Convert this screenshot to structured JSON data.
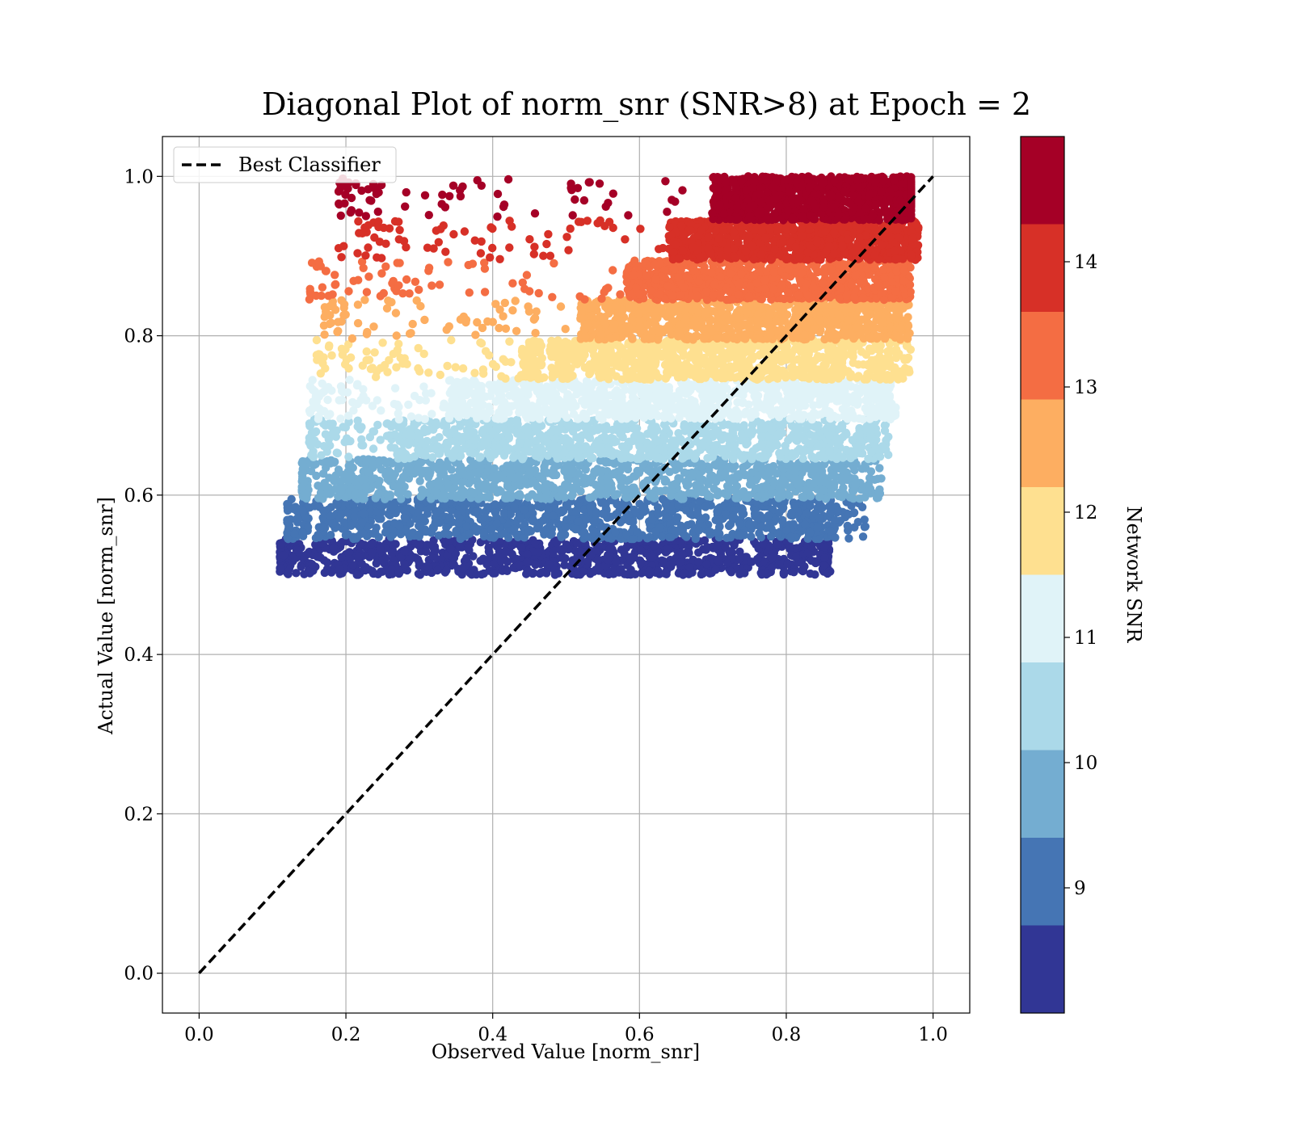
{
  "chart_data": {
    "type": "scatter",
    "title": "Diagonal Plot of norm_snr (SNR>8) at Epoch = 2",
    "xlabel": "Observed Value [norm_snr]",
    "ylabel": "Actual Value [norm_snr]",
    "xlim": [
      -0.05,
      1.05
    ],
    "ylim": [
      -0.05,
      1.05
    ],
    "xticks": [
      "0.0",
      "0.2",
      "0.4",
      "0.6",
      "0.8",
      "1.0"
    ],
    "yticks": [
      "0.0",
      "0.2",
      "0.4",
      "0.6",
      "0.8",
      "1.0"
    ],
    "grid": true,
    "legend": {
      "position": "top-left",
      "entries": [
        "Best Classifier"
      ]
    },
    "reference_line": {
      "name": "Best Classifier",
      "style": "dashed",
      "color": "#000000",
      "x": [
        0.0,
        1.0
      ],
      "y": [
        0.0,
        1.0
      ]
    },
    "colorbar": {
      "label": "Network SNR",
      "range": [
        8,
        15
      ],
      "ticks": [
        "9",
        "10",
        "11",
        "12",
        "13",
        "14"
      ],
      "colormap": "RdYlBu_r (10 discrete levels)",
      "colors": [
        "#313695",
        "#4575b4",
        "#74add1",
        "#abd9e9",
        "#e0f3f8",
        "#fee090",
        "#fdae61",
        "#f46d43",
        "#d73027",
        "#a50026"
      ]
    },
    "bands": [
      {
        "snr_range": [
          8.0,
          8.7
        ],
        "y_range": [
          0.5,
          0.545
        ],
        "x_core": [
          0.14,
          0.85
        ],
        "x_extent": [
          0.11,
          0.86
        ],
        "color": "#313695"
      },
      {
        "snr_range": [
          8.7,
          9.4
        ],
        "y_range": [
          0.545,
          0.595
        ],
        "x_core": [
          0.17,
          0.86
        ],
        "x_extent": [
          0.12,
          0.91
        ],
        "color": "#4575b4"
      },
      {
        "snr_range": [
          9.4,
          10.1
        ],
        "y_range": [
          0.595,
          0.645
        ],
        "x_core": [
          0.2,
          0.89
        ],
        "x_extent": [
          0.14,
          0.93
        ],
        "color": "#74add1"
      },
      {
        "snr_range": [
          10.1,
          10.8
        ],
        "y_range": [
          0.645,
          0.695
        ],
        "x_core": [
          0.26,
          0.91
        ],
        "x_extent": [
          0.15,
          0.94
        ],
        "color": "#abd9e9"
      },
      {
        "snr_range": [
          10.8,
          11.5
        ],
        "y_range": [
          0.695,
          0.745
        ],
        "x_core": [
          0.34,
          0.93
        ],
        "x_extent": [
          0.15,
          0.95
        ],
        "color": "#e0f3f8"
      },
      {
        "snr_range": [
          11.5,
          12.2
        ],
        "y_range": [
          0.745,
          0.795
        ],
        "x_core": [
          0.44,
          0.94
        ],
        "x_extent": [
          0.16,
          0.97
        ],
        "color": "#fee090"
      },
      {
        "snr_range": [
          12.2,
          12.9
        ],
        "y_range": [
          0.795,
          0.845
        ],
        "x_core": [
          0.52,
          0.95
        ],
        "x_extent": [
          0.17,
          0.97
        ],
        "color": "#fdae61"
      },
      {
        "snr_range": [
          12.9,
          13.6
        ],
        "y_range": [
          0.845,
          0.895
        ],
        "x_core": [
          0.58,
          0.96
        ],
        "x_extent": [
          0.15,
          0.97
        ],
        "color": "#f46d43"
      },
      {
        "snr_range": [
          13.6,
          14.3
        ],
        "y_range": [
          0.895,
          0.945
        ],
        "x_core": [
          0.64,
          0.97
        ],
        "x_extent": [
          0.19,
          0.98
        ],
        "color": "#d73027"
      },
      {
        "snr_range": [
          14.3,
          15.0
        ],
        "y_range": [
          0.945,
          1.0
        ],
        "x_core": [
          0.7,
          0.97
        ],
        "x_extent": [
          0.19,
          0.97
        ],
        "color": "#a50026"
      }
    ]
  }
}
